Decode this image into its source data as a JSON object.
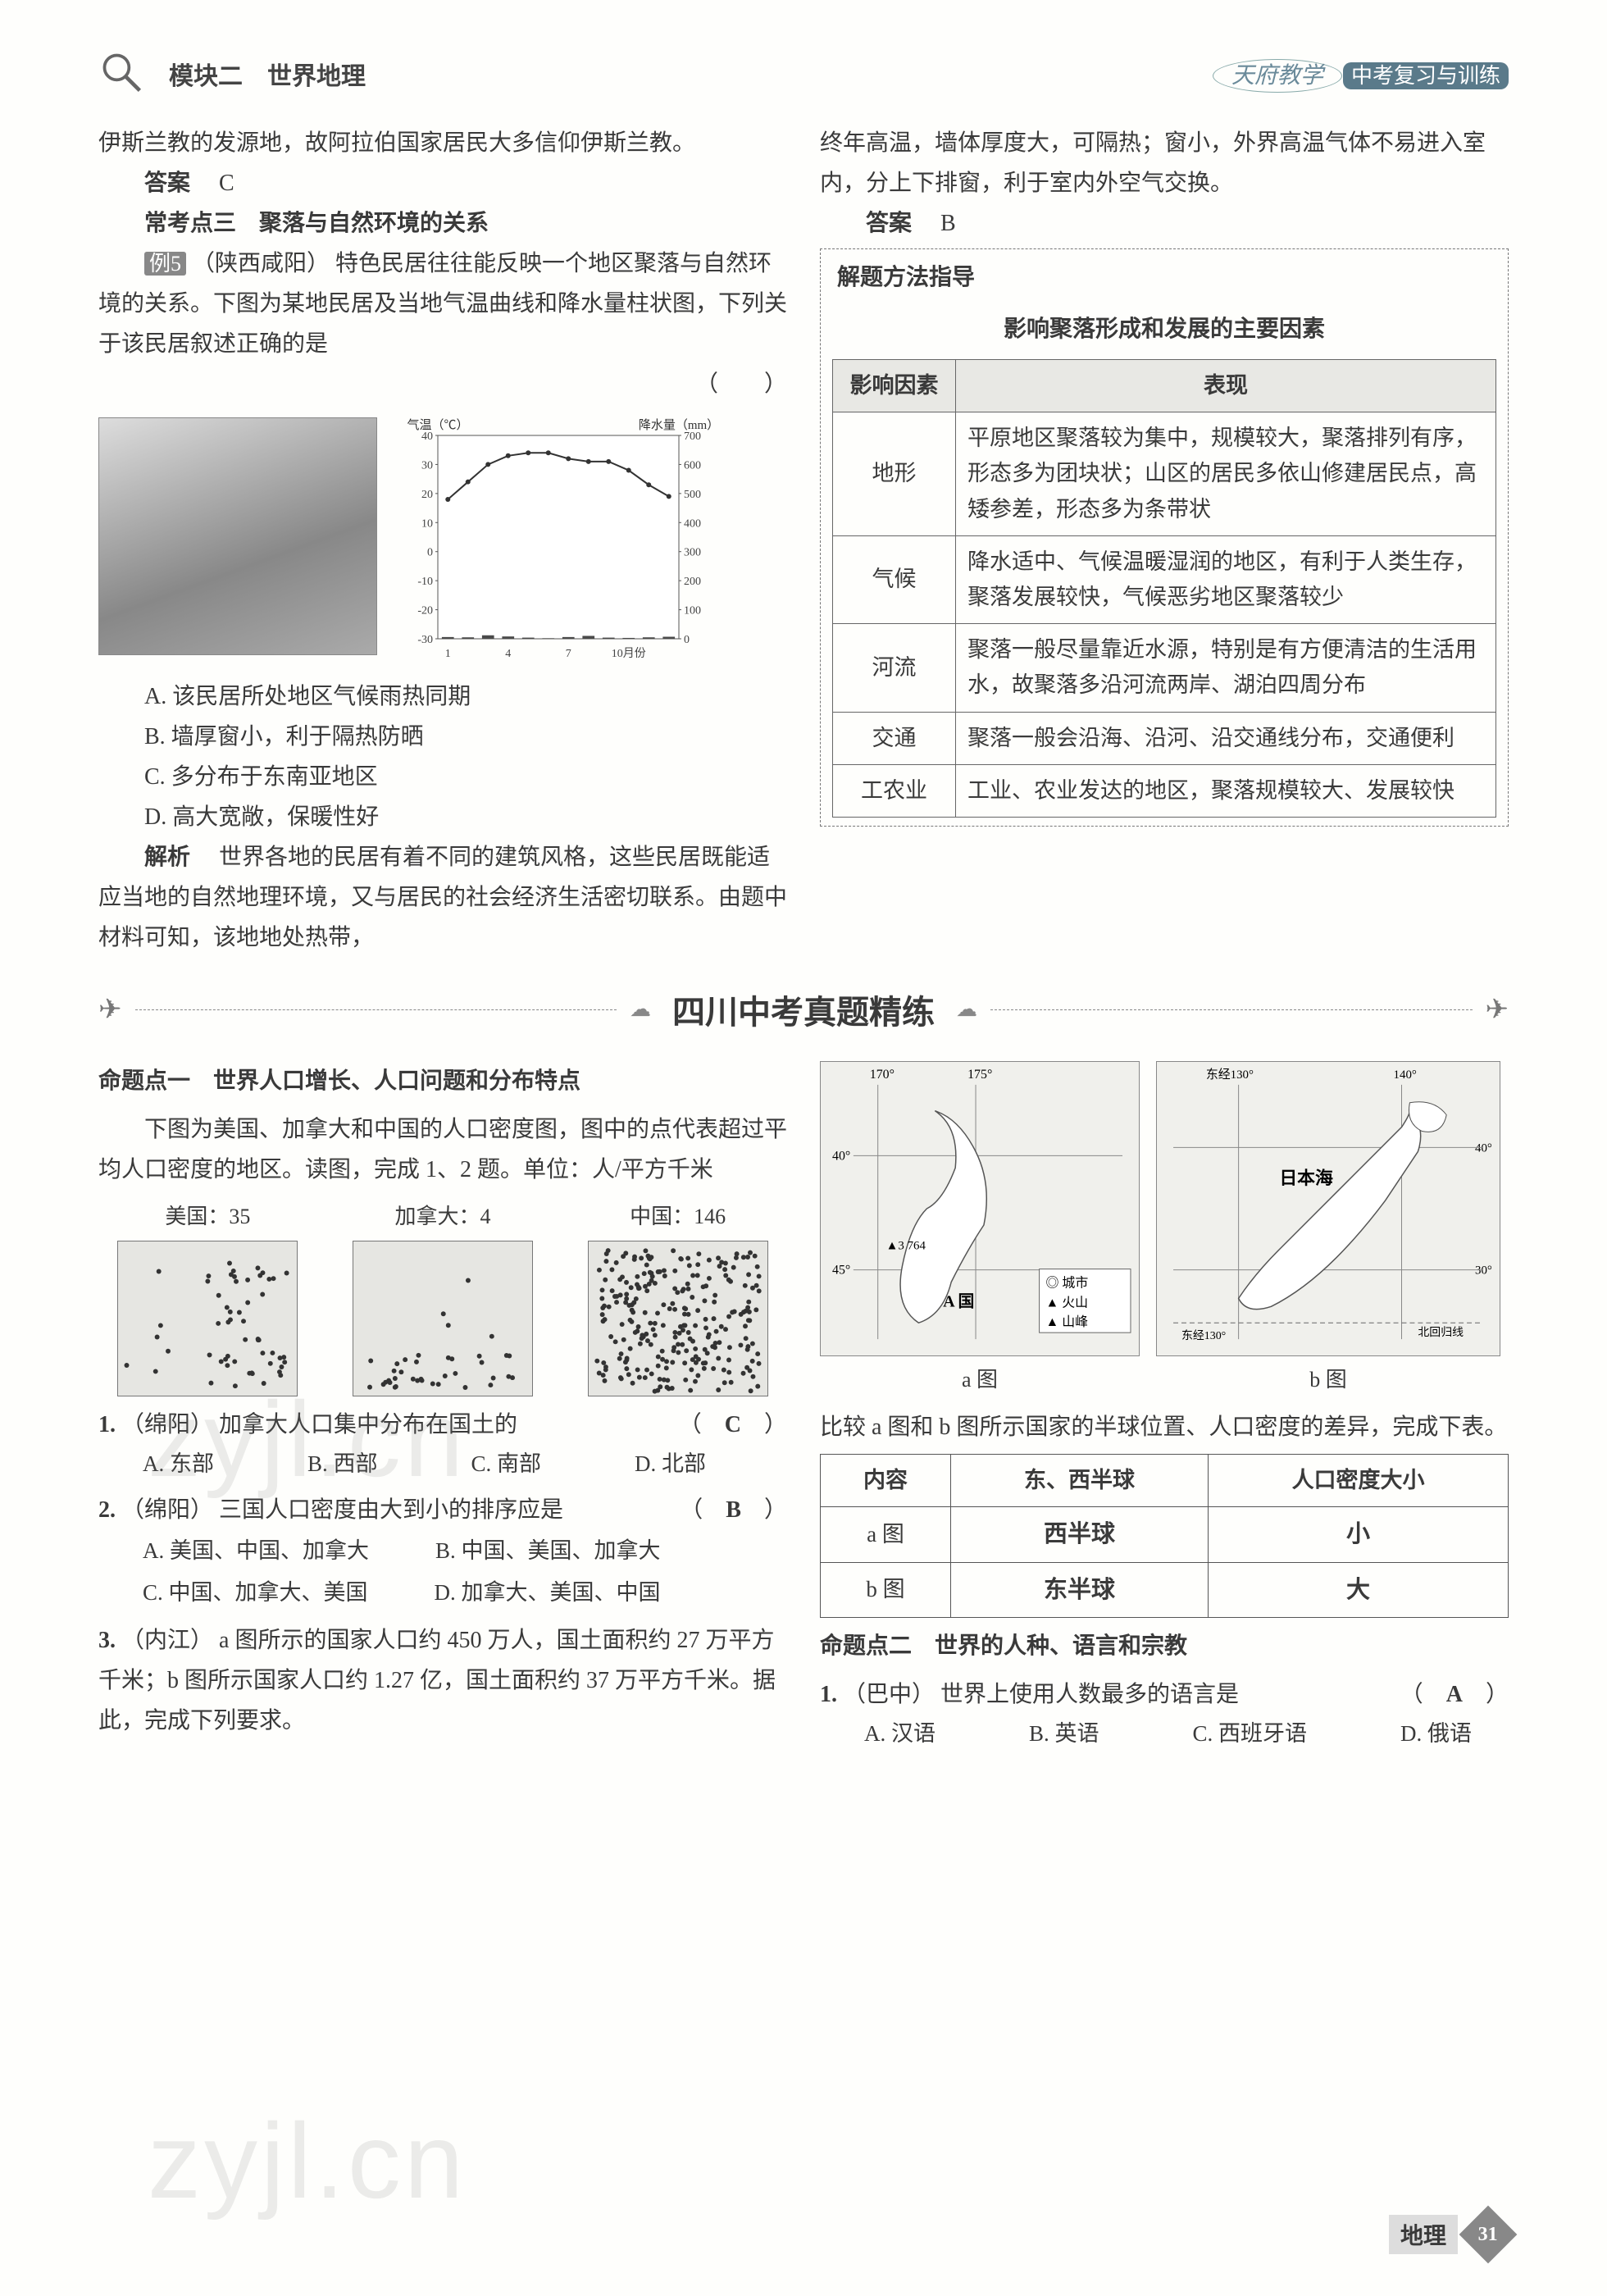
{
  "header": {
    "left_title": "模块二　世界地理",
    "right_brand": "天府教学",
    "right_tag": "中考复习与训练"
  },
  "left_col": {
    "intro_cont": "伊斯兰教的发源地，故阿拉伯国家居民大多信仰伊斯兰教。",
    "answer_label": "答案",
    "answer_val": "C",
    "point3_title": "常考点三　聚落与自然环境的关系",
    "ex5_tag": "例5",
    "ex5_src": "（陕西咸阳）",
    "ex5_text": "特色民居往往能反映一个地区聚落与自然环境的关系。下图为某地民居及当地气温曲线和降水量柱状图，下列关于该民居叙述正确的是",
    "paren": "（　　）",
    "chart": {
      "y1_label": "气温（℃）",
      "y2_label": "降水量（mm）",
      "y1_ticks": [
        "-30",
        "-20",
        "-10",
        "0",
        "10",
        "20",
        "30",
        "40"
      ],
      "y2_ticks": [
        "0",
        "100",
        "200",
        "300",
        "400",
        "500",
        "600",
        "700"
      ],
      "x_ticks": [
        "1",
        "4",
        "7",
        "10月份"
      ],
      "temps": [
        18,
        24,
        30,
        33,
        34,
        34,
        32,
        31,
        31,
        28,
        23,
        19
      ],
      "precip": [
        6,
        5,
        12,
        8,
        4,
        2,
        6,
        10,
        4,
        3,
        5,
        7
      ],
      "line_color": "#333333",
      "bar_color": "#4a4a4a",
      "axis_color": "#555555",
      "bg": "#ffffff"
    },
    "optA": "A. 该民居所处地区气候雨热同期",
    "optB": "B. 墙厚窗小，利于隔热防晒",
    "optC": "C. 多分布于东南亚地区",
    "optD": "D. 高大宽敞，保暖性好",
    "analysis_label": "解析",
    "analysis_text": "世界各地的民居有着不同的建筑风格，这些民居既能适应当地的自然地理环境，又与居民的社会经济生活密切联系。由题中材料可知，该地地处热带，"
  },
  "right_col": {
    "cont": "终年高温，墙体厚度大，可隔热；窗小，外界高温气体不易进入室内，分上下排窗，利于室内外空气交换。",
    "answer_label": "答案",
    "answer_val": "B",
    "method_title": "解题方法指导",
    "method_sub": "影响聚落形成和发展的主要因素",
    "table_h1": "影响因素",
    "table_h2": "表现",
    "rows": [
      {
        "f": "地形",
        "d": "平原地区聚落较为集中，规模较大，聚落排列有序，形态多为团块状；山区的居民多依山修建居民点，高矮参差，形态多为条带状"
      },
      {
        "f": "气候",
        "d": "降水适中、气候温暖湿润的地区，有利于人类生存，聚落发展较快，气候恶劣地区聚落较少"
      },
      {
        "f": "河流",
        "d": "聚落一般尽量靠近水源，特别是有方便清洁的生活用水，故聚落多沿河流两岸、湖泊四周分布"
      },
      {
        "f": "交通",
        "d": "聚落一般会沿海、沿河、沿交通线分布，交通便利"
      },
      {
        "f": "工农业",
        "d": "工业、农业发达的地区，聚落规模较大、发展较快"
      }
    ]
  },
  "banner": "四川中考真题精练",
  "bottom_left": {
    "topic1": "命题点一　世界人口增长、人口问题和分布特点",
    "fig_intro": "下图为美国、加拿大和中国的人口密度图，图中的点代表超过平均人口密度的地区。读图，完成 1、2 题。单位：人/平方千米",
    "dens": [
      {
        "label": "美国：35",
        "count": 55,
        "cluster": "right"
      },
      {
        "label": "加拿大：4",
        "count": 38,
        "cluster": "bottom"
      },
      {
        "label": "中国：146",
        "count": 260,
        "cluster": "dense-right"
      }
    ],
    "q1": {
      "num": "1.",
      "src": "（绵阳）",
      "text": "加拿大人口集中分布在国土的",
      "ans": "C",
      "opts": [
        "A. 东部",
        "B. 西部",
        "C. 南部",
        "D. 北部"
      ]
    },
    "q2": {
      "num": "2.",
      "src": "（绵阳）",
      "text": "三国人口密度由大到小的排序应是",
      "ans": "B",
      "opts": [
        "A. 美国、中国、加拿大",
        "B. 中国、美国、加拿大",
        "C. 中国、加拿大、美国",
        "D. 加拿大、美国、中国"
      ]
    },
    "q3": {
      "num": "3.",
      "src": "（内江）",
      "text": "a 图所示的国家人口约 450 万人，国土面积约 27 万平方千米；b 图所示国家人口约 1.27 亿，国土面积约 37 万平方千米。据此，完成下列要求。"
    }
  },
  "bottom_right": {
    "map_a_coords": {
      "lon": [
        "170°",
        "175°"
      ],
      "lat": [
        "40°",
        "45°"
      ],
      "label": "A 国",
      "mt": "3 764",
      "legend": [
        "◎ 城市",
        "▲ 火山",
        "▲ 山峰"
      ]
    },
    "map_b_coords": {
      "lon": [
        "东经130°",
        "140°"
      ],
      "lat": [
        "30°",
        "40°"
      ],
      "sea": "日本海",
      "tropic": "北回归线"
    },
    "map_a_label": "a 图",
    "map_b_label": "b 图",
    "compare_intro": "比较 a 图和 b 图所示国家的半球位置、人口密度的差异，完成下表。",
    "cmp_h": [
      "内容",
      "东、西半球",
      "人口密度大小"
    ],
    "cmp_rows": [
      {
        "c": "a 图",
        "h": "西半球",
        "d": "小"
      },
      {
        "c": "b 图",
        "h": "东半球",
        "d": "大"
      }
    ],
    "topic2": "命题点二　世界的人种、语言和宗教",
    "q1": {
      "num": "1.",
      "src": "（巴中）",
      "text": "世界上使用人数最多的语言是",
      "ans": "A",
      "opts": [
        "A. 汉语",
        "B. 英语",
        "C. 西班牙语",
        "D. 俄语"
      ]
    }
  },
  "footer": {
    "subject": "地理",
    "page": "31"
  },
  "watermark": "zyjl.cn"
}
